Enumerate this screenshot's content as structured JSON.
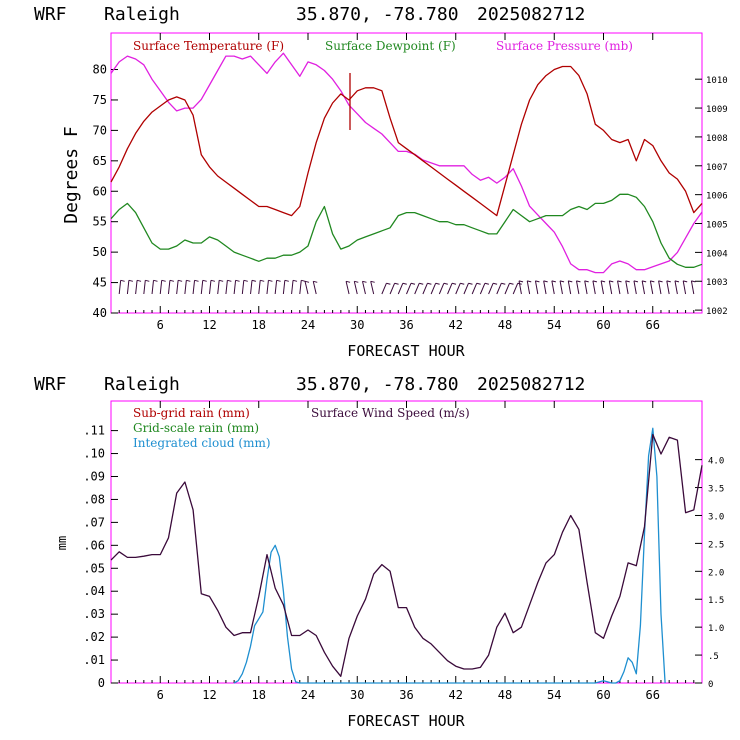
{
  "top": {
    "header": {
      "model": "WRF",
      "station": "Raleigh",
      "coords": "35.870, -78.780",
      "run": "2025082712"
    },
    "ylabel": "Degrees F",
    "xlabel": "FORECAST HOUR",
    "legend": {
      "temp": "Surface Temperature (F)",
      "dew": "Surface Dewpoint (F)",
      "pres": "Surface Pressure (mb)"
    },
    "x_ticks": [
      "6",
      "12",
      "18",
      "24",
      "30",
      "36",
      "42",
      "48",
      "54",
      "60",
      "66"
    ],
    "y_ticks": [
      "40",
      "45",
      "50",
      "55",
      "60",
      "65",
      "70",
      "75",
      "80"
    ],
    "y2_ticks": [
      "1002",
      "1003",
      "1004",
      "1005",
      "1006",
      "1007",
      "1008",
      "1009",
      "1010"
    ]
  },
  "bottom": {
    "header": {
      "model": "WRF",
      "station": "Raleigh",
      "coords": "35.870, -78.780",
      "run": "2025082712"
    },
    "ylabel": "mm",
    "xlabel": "FORECAST HOUR",
    "legend": {
      "subgrid": "Sub-grid rain (mm)",
      "gridscale": "Grid-scale rain (mm)",
      "cloud": "Integrated cloud (mm)",
      "wind": "Surface Wind Speed (m/s)"
    },
    "x_ticks": [
      "6",
      "12",
      "18",
      "24",
      "30",
      "36",
      "42",
      "48",
      "54",
      "60",
      "66"
    ],
    "y_ticks": [
      "0",
      ".01",
      ".02",
      ".03",
      ".04",
      ".05",
      ".06",
      ".07",
      ".08",
      ".09",
      ".10",
      ".11"
    ],
    "y2_ticks": [
      "0",
      ".5",
      "1.0",
      "1.5",
      "2.0",
      "2.5",
      "3.0",
      "3.5",
      "4.0"
    ]
  },
  "colors": {
    "temp": "#b00000",
    "dew": "#208820",
    "pres": "#e020e0",
    "wind": "#3a0a3a",
    "cloud": "#1e8fd0",
    "barbs": "#3a0a3a",
    "frame": "#ff00ff"
  },
  "chart_data": [
    {
      "type": "line",
      "xlabel": "FORECAST HOUR",
      "ylabel": "Degrees F",
      "xlim": [
        0,
        72
      ],
      "ylim": [
        40,
        86
      ],
      "y2lim": [
        1001.9,
        1011.6
      ],
      "series": [
        {
          "name": "Surface Temperature (F)",
          "axis": "left",
          "x": [
            0,
            1,
            2,
            3,
            4,
            5,
            6,
            7,
            8,
            9,
            10,
            11,
            12,
            13,
            14,
            15,
            16,
            17,
            18,
            19,
            20,
            21,
            22,
            23,
            24,
            25,
            26,
            27,
            28,
            29,
            30,
            31,
            32,
            33,
            34,
            35,
            36,
            37,
            38,
            39,
            40,
            41,
            42,
            43,
            44,
            45,
            46,
            47,
            48,
            49,
            50,
            51,
            52,
            53,
            54,
            55,
            56,
            57,
            58,
            59,
            60,
            61,
            62,
            63,
            64,
            65,
            66,
            67,
            68,
            69,
            70,
            71,
            72
          ],
          "y": [
            61.5,
            64,
            67,
            69.5,
            71.5,
            73,
            74,
            75,
            75.5,
            75,
            72.5,
            66,
            64,
            62.5,
            61.5,
            60.5,
            59.5,
            58.5,
            57.5,
            57.5,
            57,
            56.5,
            56,
            57.5,
            63,
            68,
            72,
            74.5,
            76,
            75,
            76.5,
            77,
            77,
            76.5,
            72,
            68,
            67,
            66,
            65,
            64,
            63,
            62,
            61,
            60,
            59,
            58,
            57,
            56,
            61,
            66,
            71,
            75,
            77.5,
            79,
            80,
            80.5,
            80.5,
            79,
            76,
            71,
            70,
            68.5,
            68,
            68.5,
            65,
            68.5,
            67.5,
            65,
            63,
            62,
            60,
            56.5,
            58
          ]
        },
        {
          "name": "Surface Dewpoint (F)",
          "axis": "left",
          "x": [
            0,
            1,
            2,
            3,
            4,
            5,
            6,
            7,
            8,
            9,
            10,
            11,
            12,
            13,
            14,
            15,
            16,
            17,
            18,
            19,
            20,
            21,
            22,
            23,
            24,
            25,
            26,
            27,
            28,
            29,
            30,
            31,
            32,
            33,
            34,
            35,
            36,
            37,
            38,
            39,
            40,
            41,
            42,
            43,
            44,
            45,
            46,
            47,
            48,
            49,
            50,
            51,
            52,
            53,
            54,
            55,
            56,
            57,
            58,
            59,
            60,
            61,
            62,
            63,
            64,
            65,
            66,
            67,
            68,
            69,
            70,
            71,
            72
          ],
          "y": [
            55.5,
            57,
            58,
            56.5,
            54,
            51.5,
            50.5,
            50.5,
            51,
            52,
            51.5,
            51.5,
            52.5,
            52,
            51,
            50,
            49.5,
            49,
            48.5,
            49,
            49,
            49.5,
            49.5,
            50,
            51,
            55,
            57.5,
            53,
            50.5,
            51,
            52,
            52.5,
            53,
            53.5,
            54,
            56,
            56.5,
            56.5,
            56,
            55.5,
            55,
            55,
            54.5,
            54.5,
            54,
            53.5,
            53,
            53,
            55,
            57,
            56,
            55,
            55.5,
            56,
            56,
            56,
            57,
            57.5,
            57,
            58,
            58,
            58.5,
            59.5,
            59.5,
            59,
            57.5,
            55,
            51.5,
            49,
            48,
            47.5,
            47.5,
            48
          ]
        },
        {
          "name": "Surface Pressure (mb)",
          "axis": "right",
          "x": [
            0,
            1,
            2,
            3,
            4,
            5,
            6,
            7,
            8,
            9,
            10,
            11,
            12,
            13,
            14,
            15,
            16,
            17,
            18,
            19,
            20,
            21,
            22,
            23,
            24,
            25,
            26,
            27,
            28,
            29,
            30,
            31,
            32,
            33,
            34,
            35,
            36,
            37,
            38,
            39,
            40,
            41,
            42,
            43,
            44,
            45,
            46,
            47,
            48,
            49,
            50,
            51,
            52,
            53,
            54,
            55,
            56,
            57,
            58,
            59,
            60,
            61,
            62,
            63,
            64,
            65,
            66,
            67,
            68,
            69,
            70,
            71,
            72
          ],
          "y": [
            1010.2,
            1010.6,
            1010.8,
            1010.7,
            1010.5,
            1010.0,
            1009.6,
            1009.2,
            1008.9,
            1009.0,
            1009.0,
            1009.3,
            1009.8,
            1010.3,
            1010.8,
            1010.8,
            1010.7,
            1010.8,
            1010.5,
            1010.2,
            1010.6,
            1010.9,
            1010.5,
            1010.1,
            1010.6,
            1010.5,
            1010.3,
            1010.0,
            1009.6,
            1009.1,
            1008.8,
            1008.5,
            1008.3,
            1008.1,
            1007.8,
            1007.5,
            1007.5,
            1007.4,
            1007.2,
            1007.1,
            1007.0,
            1007.0,
            1007.0,
            1007.0,
            1006.7,
            1006.5,
            1006.6,
            1006.4,
            1006.6,
            1006.9,
            1006.3,
            1005.6,
            1005.3,
            1005.0,
            1004.7,
            1004.2,
            1003.6,
            1003.4,
            1003.4,
            1003.3,
            1003.3,
            1003.6,
            1003.7,
            1003.6,
            1003.4,
            1003.4,
            1003.5,
            1003.6,
            1003.7,
            1004.0,
            1004.5,
            1005.0,
            1005.4
          ]
        }
      ]
    },
    {
      "type": "line",
      "xlabel": "FORECAST HOUR",
      "ylabel": "mm",
      "xlim": [
        0,
        72
      ],
      "ylim": [
        0,
        0.1229
      ],
      "y2lim": [
        0,
        5.05
      ],
      "series": [
        {
          "name": "Surface Wind Speed (m/s)",
          "axis": "right",
          "x": [
            0,
            1,
            2,
            3,
            4,
            5,
            6,
            7,
            8,
            9,
            10,
            11,
            12,
            13,
            14,
            15,
            16,
            17,
            18,
            19,
            20,
            21,
            22,
            23,
            24,
            25,
            26,
            27,
            28,
            29,
            30,
            31,
            32,
            33,
            34,
            35,
            36,
            37,
            38,
            39,
            40,
            41,
            42,
            43,
            44,
            45,
            46,
            47,
            48,
            49,
            50,
            51,
            52,
            53,
            54,
            55,
            56,
            57,
            58,
            59,
            60,
            61,
            62,
            63,
            64,
            65,
            66,
            67,
            68,
            69,
            70,
            71,
            72
          ],
          "y": [
            2.2,
            2.35,
            2.25,
            2.25,
            2.27,
            2.3,
            2.3,
            2.6,
            3.4,
            3.6,
            3.1,
            1.6,
            1.55,
            1.3,
            1.0,
            0.85,
            0.9,
            0.9,
            1.55,
            2.3,
            1.7,
            1.4,
            0.85,
            0.85,
            0.95,
            0.85,
            0.55,
            0.3,
            0.12,
            0.8,
            1.2,
            1.5,
            1.95,
            2.12,
            2.0,
            1.35,
            1.35,
            1.0,
            0.8,
            0.7,
            0.55,
            0.4,
            0.3,
            0.25,
            0.25,
            0.28,
            0.5,
            1.0,
            1.25,
            0.9,
            1.0,
            1.4,
            1.8,
            2.15,
            2.3,
            2.7,
            3.0,
            2.75,
            1.8,
            0.9,
            0.8,
            1.2,
            1.55,
            2.15,
            2.1,
            2.8,
            4.45,
            4.1,
            4.4,
            4.35,
            3.05,
            3.1,
            3.9
          ]
        },
        {
          "name": "Integrated cloud (mm)",
          "axis": "left",
          "x": [
            15,
            15.5,
            16,
            16.5,
            17,
            17.5,
            18,
            18.5,
            19,
            19.5,
            20,
            20.5,
            21,
            21.5,
            22,
            22.5,
            23,
            59,
            60,
            61,
            61.5,
            62,
            62.5,
            63,
            63.5,
            64,
            64.5,
            65,
            65.5,
            66,
            66.5,
            67,
            67.5
          ],
          "y": [
            0,
            0.001,
            0.004,
            0.009,
            0.016,
            0.025,
            0.028,
            0.031,
            0.045,
            0.057,
            0.06,
            0.055,
            0.04,
            0.02,
            0.006,
            0.0005,
            0,
            0,
            0.001,
            0,
            0,
            0.001,
            0.005,
            0.011,
            0.009,
            0.004,
            0.025,
            0.065,
            0.099,
            0.111,
            0.09,
            0.03,
            0
          ]
        }
      ]
    }
  ]
}
